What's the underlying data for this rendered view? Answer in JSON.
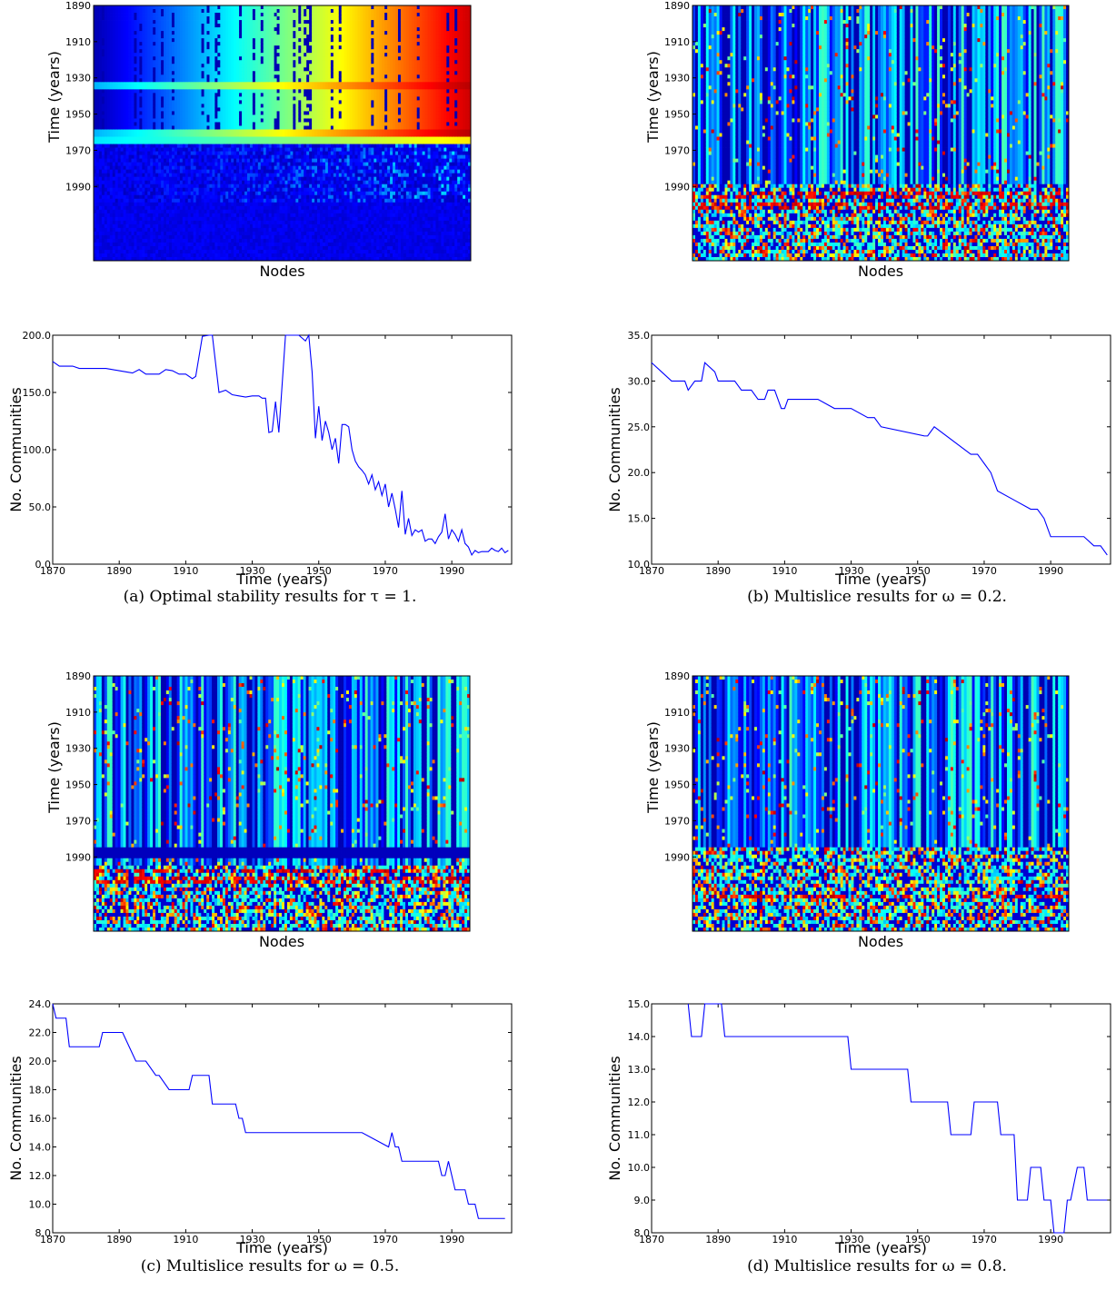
{
  "figure": {
    "panels": [
      {
        "caption": "(a) Optimal stability results for τ = 1.",
        "heatmap": {
          "type": "heatmap",
          "xlabel": "Nodes",
          "ylabel": "Time (years)",
          "yticks": [
            "1890",
            "1910",
            "1930",
            "1950",
            "1970",
            "1990"
          ],
          "style": "gradient",
          "bands": [
            1935,
            1960
          ],
          "dark_from": 1962,
          "top_band_year": 1998
        },
        "line": {
          "type": "line",
          "xlabel": "Time (years)",
          "ylabel": "No. Communities",
          "xticks": [
            "1870",
            "1890",
            "1910",
            "1930",
            "1950",
            "1970",
            "1990"
          ],
          "yticks": [
            "0.0",
            "50.0",
            "100.0",
            "150.0",
            "200.0"
          ],
          "xlim": [
            1870,
            2008
          ],
          "ylim": [
            0,
            200
          ],
          "x": [
            1870,
            1872,
            1874,
            1876,
            1878,
            1880,
            1882,
            1884,
            1886,
            1888,
            1890,
            1892,
            1894,
            1896,
            1898,
            1900,
            1902,
            1904,
            1906,
            1908,
            1910,
            1912,
            1913,
            1915,
            1917,
            1918,
            1920,
            1922,
            1924,
            1926,
            1928,
            1930,
            1932,
            1933,
            1934,
            1935,
            1936,
            1937,
            1938,
            1940,
            1942,
            1944,
            1946,
            1947,
            1948,
            1949,
            1950,
            1951,
            1952,
            1953,
            1954,
            1955,
            1956,
            1957,
            1958,
            1959,
            1960,
            1961,
            1962,
            1963,
            1964,
            1965,
            1966,
            1967,
            1968,
            1969,
            1970,
            1971,
            1972,
            1973,
            1974,
            1975,
            1976,
            1977,
            1978,
            1979,
            1980,
            1981,
            1982,
            1983,
            1984,
            1985,
            1986,
            1987,
            1988,
            1989,
            1990,
            1991,
            1992,
            1993,
            1994,
            1995,
            1996,
            1997,
            1998,
            1999,
            2000,
            2001,
            2002,
            2003,
            2004,
            2005,
            2006,
            2007
          ],
          "y": [
            177,
            173,
            173,
            173,
            171,
            171,
            171,
            171,
            171,
            170,
            169,
            168,
            167,
            170,
            166,
            166,
            166,
            170,
            169,
            166,
            166,
            162,
            164,
            199,
            200,
            200,
            150,
            152,
            148,
            147,
            146,
            147,
            147,
            145,
            145,
            115,
            116,
            142,
            115,
            200,
            200,
            200,
            195,
            200,
            168,
            110,
            138,
            108,
            125,
            115,
            100,
            110,
            88,
            122,
            122,
            120,
            100,
            90,
            85,
            82,
            78,
            70,
            78,
            65,
            72,
            60,
            70,
            50,
            62,
            48,
            32,
            64,
            26,
            40,
            25,
            30,
            28,
            30,
            20,
            22,
            22,
            18,
            24,
            28,
            44,
            22,
            30,
            26,
            20,
            30,
            18,
            15,
            8,
            12,
            10,
            11,
            11,
            11,
            14,
            12,
            11,
            14,
            10,
            12
          ]
        }
      },
      {
        "caption": "(b) Multislice results for ω = 0.2.",
        "heatmap": {
          "type": "heatmap",
          "xlabel": "Nodes",
          "ylabel": "Time (years)",
          "yticks": [
            "1890",
            "1910",
            "1930",
            "1950",
            "1970",
            "1990"
          ],
          "style": "stripes",
          "seed": 11,
          "noisy_from": 1988,
          "red_rows": [
            1995,
            2001
          ],
          "blue_bands": []
        },
        "line": {
          "type": "line",
          "xlabel": "Time (years)",
          "ylabel": "No. Communities",
          "xticks": [
            "1870",
            "1890",
            "1910",
            "1930",
            "1950",
            "1970",
            "1990"
          ],
          "yticks": [
            "10.0",
            "15.0",
            "20.0",
            "25.0",
            "30.0",
            "35.0"
          ],
          "xlim": [
            1870,
            2008
          ],
          "ylim": [
            10,
            35
          ],
          "x": [
            1870,
            1873,
            1876,
            1880,
            1881,
            1883,
            1885,
            1886,
            1889,
            1890,
            1892,
            1895,
            1897,
            1900,
            1902,
            1904,
            1905,
            1907,
            1908,
            1909,
            1910,
            1911,
            1913,
            1915,
            1920,
            1925,
            1930,
            1935,
            1936,
            1937,
            1939,
            1952,
            1953,
            1955,
            1966,
            1968,
            1970,
            1972,
            1974,
            1979,
            1984,
            1986,
            1988,
            1989,
            1990,
            1999,
            2000,
            2003,
            2005,
            2007
          ],
          "y": [
            32,
            31,
            30,
            30,
            29,
            30,
            30,
            32,
            31,
            30,
            30,
            30,
            29,
            29,
            28,
            28,
            29,
            29,
            28,
            27,
            27,
            28,
            28,
            28,
            28,
            27,
            27,
            26,
            26,
            26,
            25,
            24,
            24,
            25,
            22,
            22,
            21,
            20,
            18,
            17,
            16,
            16,
            15,
            14,
            13,
            13,
            13,
            12,
            12,
            11
          ]
        }
      },
      {
        "caption": "(c) Multislice results for ω = 0.5.",
        "heatmap": {
          "type": "heatmap",
          "xlabel": "Nodes",
          "ylabel": "Time (years)",
          "yticks": [
            "1890",
            "1910",
            "1930",
            "1950",
            "1970",
            "1990"
          ],
          "style": "stripes",
          "seed": 29,
          "noisy_from": 1994,
          "red_rows": [
            1998,
            2003
          ],
          "blue_bands": [
            1988
          ]
        },
        "line": {
          "type": "line",
          "xlabel": "Time (years)",
          "ylabel": "No. Communities",
          "xticks": [
            "1870",
            "1890",
            "1910",
            "1930",
            "1950",
            "1970",
            "1990"
          ],
          "yticks": [
            "8.0",
            "10.0",
            "12.0",
            "14.0",
            "16.0",
            "18.0",
            "20.0",
            "22.0",
            "24.0"
          ],
          "xlim": [
            1870,
            2008
          ],
          "ylim": [
            8,
            24
          ],
          "x": [
            1870,
            1871,
            1874,
            1875,
            1884,
            1885,
            1891,
            1893,
            1895,
            1898,
            1901,
            1902,
            1905,
            1906,
            1911,
            1912,
            1917,
            1918,
            1925,
            1926,
            1927,
            1928,
            1930,
            1963,
            1971,
            1972,
            1973,
            1974,
            1975,
            1986,
            1987,
            1988,
            1989,
            1990,
            1991,
            1994,
            1995,
            1996,
            1997,
            1998,
            2006
          ],
          "y": [
            24,
            23,
            23,
            21,
            21,
            22,
            22,
            21,
            20,
            20,
            19,
            19,
            18,
            18,
            18,
            19,
            19,
            17,
            17,
            16,
            16,
            15,
            15,
            15,
            14,
            15,
            14,
            14,
            13,
            13,
            12,
            12,
            13,
            12,
            11,
            11,
            10,
            10,
            10,
            9,
            9
          ]
        }
      },
      {
        "caption": "(d) Multislice results for ω = 0.8.",
        "heatmap": {
          "type": "heatmap",
          "xlabel": "Nodes",
          "ylabel": "Time (years)",
          "yticks": [
            "1890",
            "1910",
            "1930",
            "1950",
            "1970",
            "1990"
          ],
          "style": "stripes",
          "seed": 53,
          "noisy_from": 1985,
          "red_rows": [
            2012
          ],
          "blue_bands": []
        },
        "line": {
          "type": "line",
          "xlabel": "Time (years)",
          "ylabel": "No. Communities",
          "xticks": [
            "1870",
            "1890",
            "1910",
            "1930",
            "1950",
            "1970",
            "1990"
          ],
          "yticks": [
            "8.0",
            "9.0",
            "10.0",
            "11.0",
            "12.0",
            "13.0",
            "14.0",
            "15.0"
          ],
          "xlim": [
            1870,
            2008
          ],
          "ylim": [
            8,
            15
          ],
          "x": [
            1881,
            1882,
            1885,
            1886,
            1887,
            1891,
            1892,
            1929,
            1930,
            1947,
            1948,
            1959,
            1960,
            1966,
            1967,
            1974,
            1975,
            1979,
            1980,
            1983,
            1984,
            1987,
            1988,
            1990,
            1991,
            1993,
            1994,
            1995,
            1996,
            1998,
            1999,
            2000,
            2001,
            2007
          ],
          "y": [
            15,
            14,
            14,
            15,
            15,
            15,
            14,
            14,
            13,
            13,
            12,
            12,
            11,
            11,
            12,
            12,
            11,
            11,
            9,
            9,
            10,
            10,
            9,
            9,
            8,
            8,
            8,
            9,
            9,
            10,
            10,
            10,
            9,
            9
          ]
        }
      }
    ]
  }
}
